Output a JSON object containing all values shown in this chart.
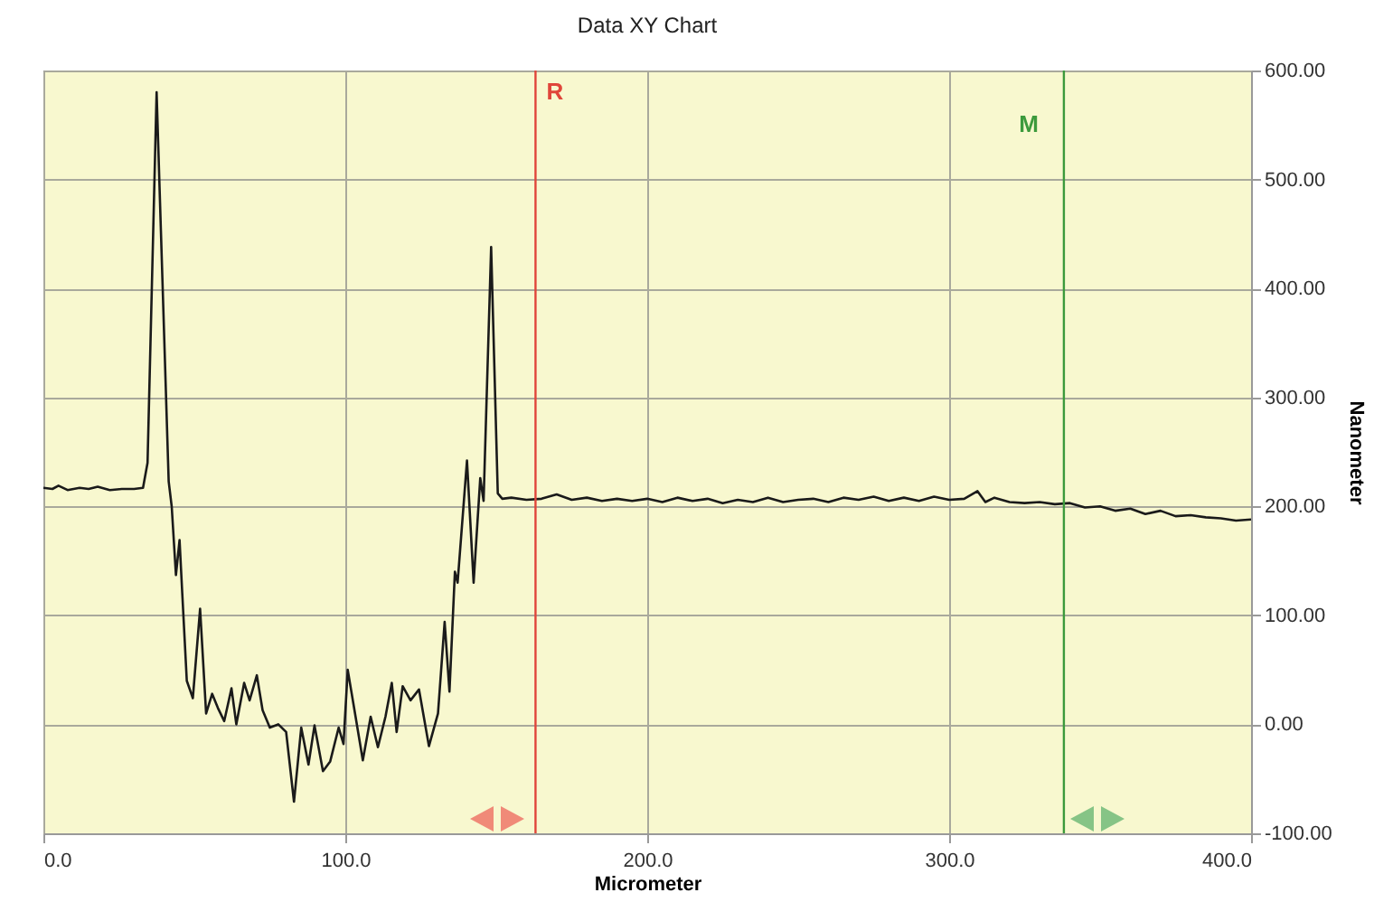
{
  "chart_data": {
    "type": "line",
    "title": "Data XY Chart",
    "xlabel": "Micrometer",
    "ylabel": "Nanometer",
    "xlim": [
      0,
      400
    ],
    "xticks": [
      {
        "value": 0,
        "label": "0.0"
      },
      {
        "value": 100,
        "label": "100.0"
      },
      {
        "value": 200,
        "label": "200.0"
      },
      {
        "value": 300,
        "label": "300.0"
      },
      {
        "value": 400,
        "label": "400.0"
      }
    ],
    "ylim": [
      -100,
      600
    ],
    "yticks": [
      {
        "value": -100,
        "label": "-100.00"
      },
      {
        "value": 0,
        "label": "0.00"
      },
      {
        "value": 100,
        "label": "100.00"
      },
      {
        "value": 200,
        "label": "200.00"
      },
      {
        "value": 300,
        "label": "300.00"
      },
      {
        "value": 400,
        "label": "400.00"
      },
      {
        "value": 500,
        "label": "500.00"
      },
      {
        "value": 600,
        "label": "600.00"
      }
    ],
    "grid": true,
    "legend": false,
    "marker": "none",
    "line_style": "solid",
    "ref_lines": [
      {
        "axis": "x",
        "value": 163,
        "label": "R",
        "color": "#e0453a"
      },
      {
        "axis": "x",
        "value": 338,
        "label": "M",
        "color": "#3c9a3c"
      }
    ],
    "series": [
      {
        "color": "#1a1a1a",
        "x": [
          0,
          3,
          5,
          8,
          12,
          15,
          18,
          22,
          26,
          30,
          33,
          34.5,
          37.5,
          41.5,
          42.5,
          43.9,
          45.1,
          46,
          47.5,
          49.5,
          51.9,
          53.9,
          55.9,
          57.8,
          59.9,
          62.3,
          63.9,
          66.5,
          68.3,
          70.7,
          72.6,
          75,
          77.8,
          80.4,
          83,
          85.4,
          87.8,
          89.8,
          92.6,
          95,
          97.8,
          99.4,
          100.8,
          103.4,
          105.8,
          108.4,
          110.8,
          113.3,
          115.4,
          117,
          119,
          121.6,
          124.4,
          127.7,
          130.7,
          132.9,
          134.5,
          136.3,
          137.2,
          140.3,
          142.5,
          144.7,
          145.8,
          148.3,
          150.5,
          152,
          155,
          160,
          165,
          170,
          175,
          180,
          185,
          190,
          195,
          200,
          205,
          210,
          215,
          220,
          225,
          230,
          235,
          240,
          245,
          250,
          255,
          260,
          265,
          270,
          275,
          280,
          285,
          290,
          295,
          300,
          305,
          309.4,
          312,
          315,
          320,
          325,
          330,
          335,
          340,
          345,
          350,
          355,
          360,
          365,
          370,
          375,
          380,
          385,
          390,
          395,
          400
        ],
        "values": [
          217,
          216,
          219,
          215,
          217,
          216,
          218,
          215,
          216,
          216,
          217,
          240,
          580,
          223,
          200,
          137,
          169,
          120,
          40,
          24,
          106,
          10,
          28,
          15,
          3,
          33,
          0,
          38,
          22,
          45,
          13,
          -3,
          0,
          -7,
          -71,
          -3,
          -37,
          -1,
          -43,
          -34,
          -3,
          -18,
          50,
          7,
          -33,
          7,
          -21,
          7,
          38,
          -7,
          35,
          22,
          32,
          -20,
          10,
          94,
          30,
          140,
          130,
          242,
          130,
          226,
          205,
          438,
          212,
          207,
          208,
          206,
          207,
          211,
          206,
          208,
          205,
          207,
          205,
          207,
          204,
          208,
          205,
          207,
          203,
          206,
          204,
          208,
          204,
          206,
          207,
          204,
          208,
          206,
          209,
          205,
          208,
          205,
          209,
          206,
          207,
          214,
          204,
          208,
          204,
          203,
          204,
          202,
          203,
          199,
          200,
          196,
          198,
          193,
          196,
          191,
          192,
          190,
          189,
          187,
          188
        ]
      }
    ]
  }
}
